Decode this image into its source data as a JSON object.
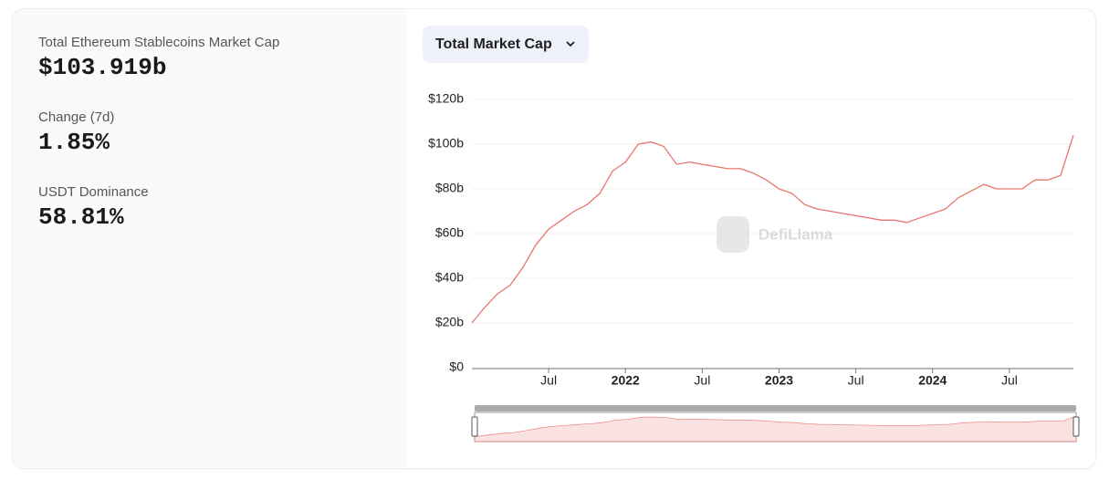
{
  "stats": [
    {
      "label": "Total Ethereum Stablecoins Market Cap",
      "value": "$103.919b"
    },
    {
      "label": "Change (7d)",
      "value": "1.85%"
    },
    {
      "label": "USDT Dominance",
      "value": "58.81%"
    }
  ],
  "dropdown": "Total Market Cap",
  "chart_data": {
    "type": "line",
    "watermark": "DefiLlama",
    "x": [
      "2021-01",
      "2021-02",
      "2021-03",
      "2021-04",
      "2021-05",
      "2021-06",
      "2021-07",
      "2021-08",
      "2021-09",
      "2021-10",
      "2021-11",
      "2021-12",
      "2022-01",
      "2022-02",
      "2022-03",
      "2022-04",
      "2022-05",
      "2022-06",
      "2022-07",
      "2022-08",
      "2022-09",
      "2022-10",
      "2022-11",
      "2022-12",
      "2023-01",
      "2023-02",
      "2023-03",
      "2023-04",
      "2023-05",
      "2023-06",
      "2023-07",
      "2023-08",
      "2023-09",
      "2023-10",
      "2023-11",
      "2023-12",
      "2024-01",
      "2024-02",
      "2024-03",
      "2024-04",
      "2024-05",
      "2024-06",
      "2024-07",
      "2024-08",
      "2024-09",
      "2024-10",
      "2024-11",
      "2024-12"
    ],
    "series": [
      {
        "name": "Total Market Cap",
        "color": "#e8756f",
        "values": [
          20,
          27,
          33,
          37,
          45,
          55,
          62,
          66,
          70,
          73,
          78,
          88,
          92,
          100,
          101,
          99,
          91,
          92,
          91,
          90,
          89,
          89,
          87,
          84,
          80,
          78,
          73,
          71,
          70,
          69,
          68,
          67,
          66,
          66,
          65,
          67,
          69,
          71,
          76,
          79,
          82,
          80,
          80,
          80,
          84,
          84,
          86,
          104
        ]
      }
    ],
    "xlim": [
      "2021-01",
      "2024-12"
    ],
    "xticks": [
      {
        "value": "2021-07",
        "label": "Jul"
      },
      {
        "value": "2022-01",
        "label": "2022"
      },
      {
        "value": "2022-07",
        "label": "Jul"
      },
      {
        "value": "2023-01",
        "label": "2023"
      },
      {
        "value": "2023-07",
        "label": "Jul"
      },
      {
        "value": "2024-01",
        "label": "2024"
      },
      {
        "value": "2024-07",
        "label": "Jul"
      }
    ],
    "ylim": [
      0,
      120
    ],
    "yticks": [
      {
        "value": 0,
        "label": "$0"
      },
      {
        "value": 20,
        "label": "$20b"
      },
      {
        "value": 40,
        "label": "$40b"
      },
      {
        "value": 60,
        "label": "$60b"
      },
      {
        "value": 80,
        "label": "$80b"
      },
      {
        "value": 100,
        "label": "$100b"
      },
      {
        "value": 120,
        "label": "$120b"
      }
    ],
    "grid": true
  }
}
